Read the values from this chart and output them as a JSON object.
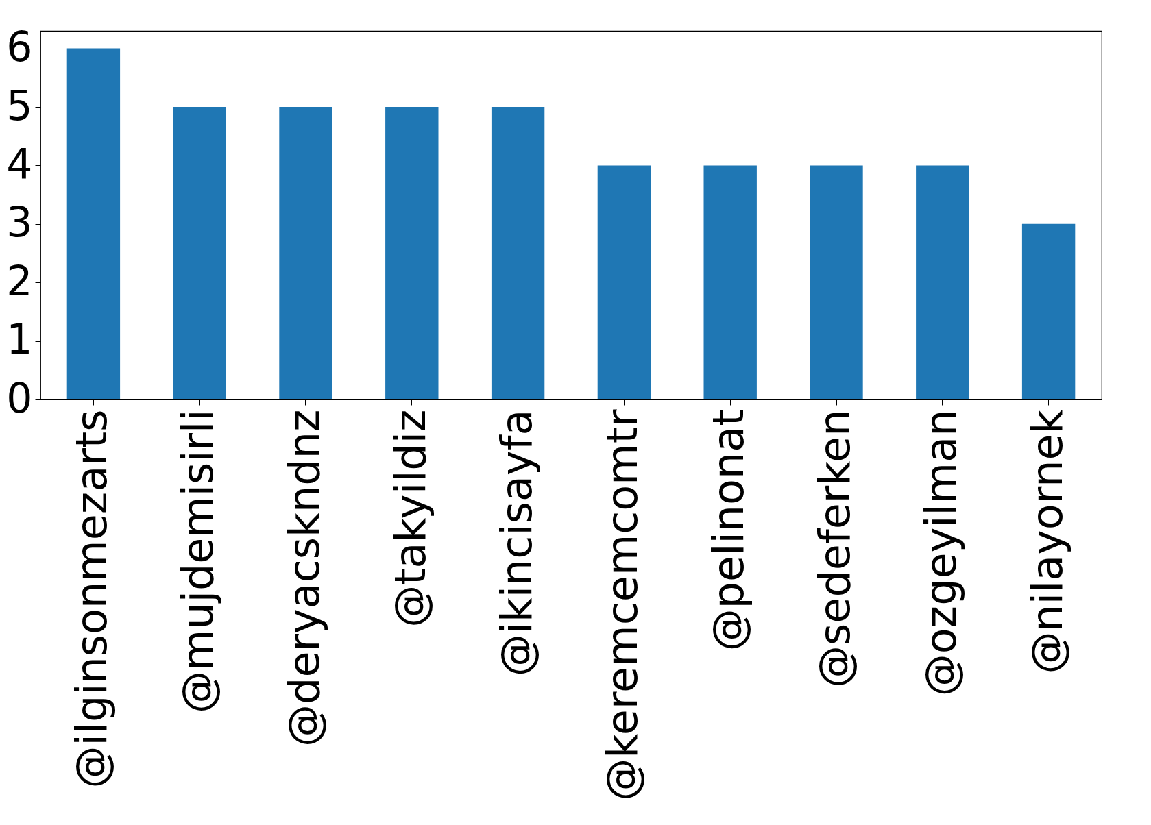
{
  "chart_data": {
    "type": "bar",
    "categories": [
      "@ilginsonmezarts",
      "@mujdemisirli",
      "@deryacskndnz",
      "@takyildiz",
      "@ikincisayfa",
      "@keremcemcomtr",
      "@pelinonat",
      "@sedeferken",
      "@ozgeyilman",
      "@nilayornek"
    ],
    "values": [
      6,
      5,
      5,
      5,
      5,
      4,
      4,
      4,
      4,
      3
    ],
    "color": "#1f77b4",
    "ylim": [
      0,
      6.3
    ],
    "yticks": [
      0,
      1,
      2,
      3,
      4,
      5,
      6
    ],
    "grid": false
  }
}
